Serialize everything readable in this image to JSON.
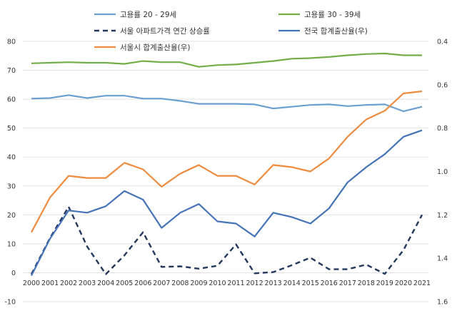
{
  "chart_data": {
    "type": "line",
    "x": [
      "2000",
      "2001",
      "2002",
      "2003",
      "2004",
      "2005",
      "2006",
      "2007",
      "2008",
      "2009",
      "2010",
      "2011",
      "2012",
      "2013",
      "2014",
      "2015",
      "2016",
      "2017",
      "2018",
      "2019",
      "2020",
      "2021"
    ],
    "left_axis": {
      "ylim": [
        -10,
        80
      ],
      "ticks": [
        "-10",
        "0",
        "10",
        "20",
        "30",
        "40",
        "50",
        "60",
        "70",
        "80"
      ],
      "tick_values": [
        -10,
        0,
        10,
        20,
        30,
        40,
        50,
        60,
        70,
        80
      ]
    },
    "right_axis": {
      "ylim": [
        1.6,
        0.4
      ],
      "inverted": true,
      "ticks": [
        "0.4",
        "0.6",
        "0.8",
        "1.0",
        "1.2",
        "1.4",
        "1.6"
      ],
      "tick_values": [
        0.4,
        0.6,
        0.8,
        1.0,
        1.2,
        1.4,
        1.6
      ]
    },
    "grid": true,
    "legend_position": "top",
    "series": [
      {
        "name": "고용률 20 - 29세",
        "axis": "left",
        "color": "#6a9fcf",
        "dash": "solid",
        "values": [
          60.2,
          60.4,
          61.4,
          60.4,
          61.2,
          61.2,
          60.2,
          60.2,
          59.4,
          58.4,
          58.4,
          58.4,
          58.2,
          56.8,
          57.4,
          58.0,
          58.2,
          57.6,
          58.0,
          58.2,
          55.8,
          57.4
        ]
      },
      {
        "name": "고용률 30 - 39세",
        "axis": "left",
        "color": "#72ad47",
        "dash": "solid",
        "values": [
          72.4,
          72.6,
          72.8,
          72.6,
          72.6,
          72.2,
          73.2,
          72.8,
          72.8,
          71.2,
          71.8,
          72.0,
          72.6,
          73.2,
          74.0,
          74.2,
          74.6,
          75.2,
          75.6,
          75.8,
          75.2,
          75.2
        ]
      },
      {
        "name": "서울 아파트가격 연간 상승률",
        "axis": "left",
        "color": "#22375e",
        "dash": "dashed",
        "values": [
          -0.5,
          12.0,
          22.8,
          9.0,
          -0.5,
          6.0,
          14.0,
          2.0,
          2.2,
          1.4,
          2.4,
          9.8,
          -0.2,
          0.2,
          2.6,
          5.2,
          1.2,
          1.2,
          2.8,
          -0.4,
          7.8,
          20.0
        ]
      },
      {
        "name": "전국 합계출산율(우)",
        "axis": "right",
        "color": "#4573b8",
        "dash": "solid",
        "values": [
          1.48,
          1.31,
          1.18,
          1.19,
          1.16,
          1.09,
          1.13,
          1.26,
          1.19,
          1.15,
          1.23,
          1.24,
          1.3,
          1.19,
          1.21,
          1.24,
          1.17,
          1.05,
          0.98,
          0.92,
          0.84,
          0.81
        ]
      },
      {
        "name": "서울시 합계출산율(우)",
        "axis": "right",
        "color": "#ed8b3f",
        "dash": "solid",
        "values": [
          1.28,
          1.12,
          1.02,
          1.03,
          1.03,
          0.96,
          0.99,
          1.07,
          1.01,
          0.97,
          1.02,
          1.02,
          1.06,
          0.97,
          0.98,
          1.0,
          0.94,
          0.84,
          0.76,
          0.72,
          0.64,
          0.63
        ]
      }
    ]
  }
}
